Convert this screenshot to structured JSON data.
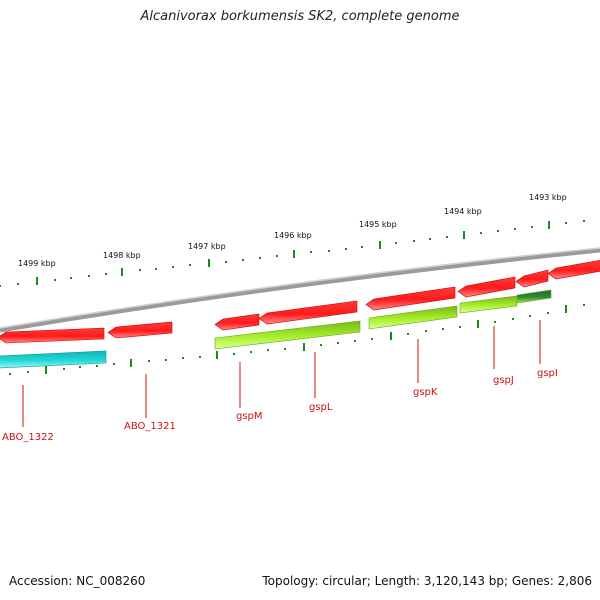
{
  "title": "Alcanivorax borkumensis SK2, complete genome",
  "accession_label": "Accession: NC_008260",
  "info_label": "Topology: circular; Length: 3,120,143 bp; Genes: 2,806",
  "colors": {
    "forward_gene": "#ff1a1a",
    "reverse_gene_cyan": "#22d8d8",
    "reverse_gene_green": "#a8ee2a",
    "reverse_gene_dark": "#2e8b3a",
    "backbone": "#8c8c8c",
    "tick": "#1a8a1a",
    "label": "#cc1111"
  },
  "scale_labels": [
    "1499 kbp",
    "1498 kbp",
    "1497 kbp",
    "1496 kbp",
    "1495 kbp",
    "1494 kbp",
    "1493 kbp"
  ],
  "gene_labels": [
    "ABO_1322",
    "ABO_1321",
    "gspM",
    "gspL",
    "gspK",
    "gspJ",
    "gspI"
  ],
  "forward_genes": [
    "gene-1",
    "gene-2",
    "gene-3",
    "gene-4",
    "gene-5",
    "gene-6",
    "gene-7",
    "gene-8"
  ],
  "reverse_genes": [
    {
      "name": "ABO_1322",
      "color": "cyan"
    },
    {
      "name": "gspL",
      "color": "green"
    },
    {
      "name": "gspK",
      "color": "green"
    },
    {
      "name": "gspJ",
      "color": "green"
    },
    {
      "name": "gspI",
      "color": "dark"
    }
  ]
}
